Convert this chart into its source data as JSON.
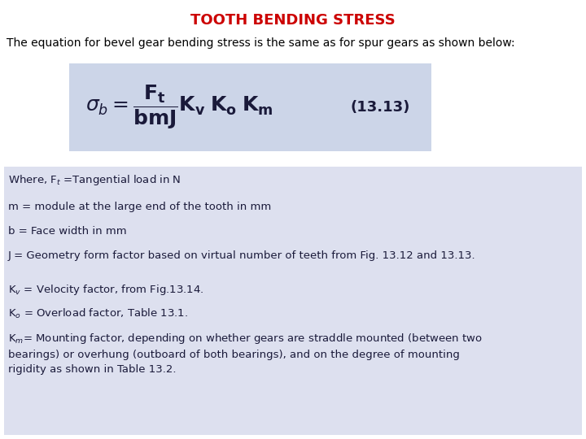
{
  "title": "TOOTH BENDING STRESS",
  "title_color": "#CC0000",
  "title_fontsize": 13,
  "subtitle": "The equation for bevel gear bending stress is the same as for spur gears as shown below:",
  "subtitle_fontsize": 10,
  "equation_box_color": "#ccd5e8",
  "body_bg_color": "#dde0ef",
  "white_bg": "#ffffff",
  "lines": [
    "Where, F$_t$ =Tangential load in N",
    "m = module at the large end of the tooth in mm",
    "b = Face width in mm",
    "J = Geometry form factor based on virtual number of teeth from Fig. 13.12 and 13.13.",
    "K$_v$ = Velocity factor, from Fig.13.14.",
    "K$_o$ = Overload factor, Table 13.1.",
    "K$_m$= Mounting factor, depending on whether gears are straddle mounted (between two\nbearings) or overhung (outboard of both bearings), and on the degree of mounting\nrigidity as shown in Table 13.2."
  ],
  "line_fontsize": 9.5,
  "equation_label": "(13.13)",
  "text_color": "#1a1a3a"
}
